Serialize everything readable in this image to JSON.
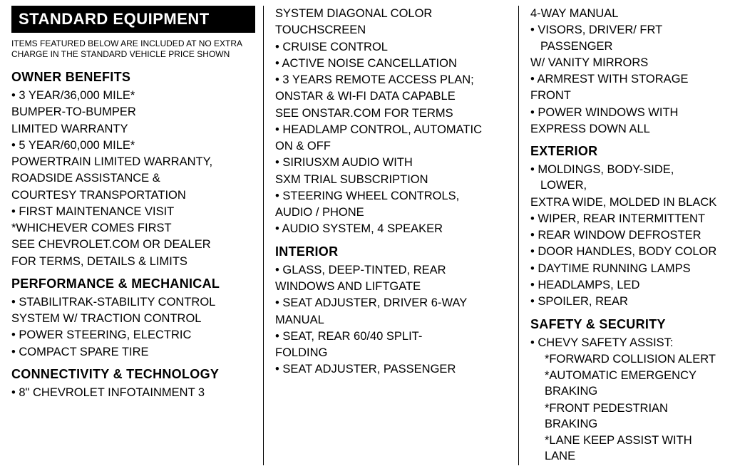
{
  "header": "STANDARD EQUIPMENT",
  "subnote": "ITEMS FEATURED BELOW ARE INCLUDED AT NO EXTRA CHARGE IN THE STANDARD VEHICLE PRICE SHOWN",
  "col1": {
    "sections": [
      {
        "title": "OWNER BENEFITS",
        "lines": [
          {
            "t": "3 YEAR/36,000 MILE*",
            "b": true
          },
          {
            "t": "BUMPER-TO-BUMPER",
            "b": false
          },
          {
            "t": "LIMITED WARRANTY",
            "b": false
          },
          {
            "t": "5 YEAR/60,000 MILE*",
            "b": true
          },
          {
            "t": "POWERTRAIN LIMITED WARRANTY,",
            "b": false
          },
          {
            "t": "ROADSIDE ASSISTANCE &",
            "b": false
          },
          {
            "t": "COURTESY TRANSPORTATION",
            "b": false
          },
          {
            "t": "FIRST MAINTENANCE VISIT",
            "b": true
          },
          {
            "t": "*WHICHEVER COMES FIRST",
            "b": false
          },
          {
            "t": "SEE CHEVROLET.COM OR DEALER",
            "b": false
          },
          {
            "t": "FOR TERMS, DETAILS & LIMITS",
            "b": false
          }
        ]
      },
      {
        "title": "PERFORMANCE & MECHANICAL",
        "lines": [
          {
            "t": "STABILITRAK-STABILITY CONTROL",
            "b": true
          },
          {
            "t": "SYSTEM W/ TRACTION CONTROL",
            "b": false
          },
          {
            "t": "POWER STEERING, ELECTRIC",
            "b": true
          },
          {
            "t": "COMPACT SPARE TIRE",
            "b": true
          }
        ]
      },
      {
        "title": "CONNECTIVITY & TECHNOLOGY",
        "lines": [
          {
            "t": "8\" CHEVROLET INFOTAINMENT 3",
            "b": true
          }
        ]
      }
    ]
  },
  "col2": {
    "sections": [
      {
        "title": null,
        "lines": [
          {
            "t": "SYSTEM DIAGONAL COLOR",
            "b": false
          },
          {
            "t": "TOUCHSCREEN",
            "b": false
          },
          {
            "t": "CRUISE CONTROL",
            "b": true
          },
          {
            "t": "ACTIVE NOISE CANCELLATION",
            "b": true
          },
          {
            "t": "3 YEARS REMOTE ACCESS PLAN;",
            "b": true
          },
          {
            "t": "ONSTAR & WI-FI DATA CAPABLE",
            "b": false
          },
          {
            "t": "SEE ONSTAR.COM FOR TERMS",
            "b": false
          },
          {
            "t": "HEADLAMP CONTROL, AUTOMATIC",
            "b": true
          },
          {
            "t": "ON & OFF",
            "b": false
          },
          {
            "t": "SIRIUSXM AUDIO WITH",
            "b": true
          },
          {
            "t": "SXM TRIAL SUBSCRIPTION",
            "b": false
          },
          {
            "t": "STEERING WHEEL CONTROLS,",
            "b": true
          },
          {
            "t": "AUDIO / PHONE",
            "b": false
          },
          {
            "t": "AUDIO SYSTEM, 4 SPEAKER",
            "b": true
          }
        ]
      },
      {
        "title": "INTERIOR",
        "lines": [
          {
            "t": "GLASS, DEEP-TINTED, REAR",
            "b": true
          },
          {
            "t": "WINDOWS AND LIFTGATE",
            "b": false
          },
          {
            "t": "SEAT ADJUSTER, DRIVER 6-WAY",
            "b": true
          },
          {
            "t": "MANUAL",
            "b": false
          },
          {
            "t": "SEAT, REAR 60/40 SPLIT-",
            "b": true
          },
          {
            "t": "FOLDING",
            "b": false
          },
          {
            "t": "SEAT ADJUSTER, PASSENGER",
            "b": true
          }
        ]
      }
    ]
  },
  "col3": {
    "sections": [
      {
        "title": null,
        "lines": [
          {
            "t": "4-WAY MANUAL",
            "b": false
          },
          {
            "t": "VISORS, DRIVER/ FRT PASSENGER",
            "b": true
          },
          {
            "t": "W/ VANITY MIRRORS",
            "b": false
          },
          {
            "t": "ARMREST WITH STORAGE",
            "b": true
          },
          {
            "t": "FRONT",
            "b": false
          },
          {
            "t": "POWER WINDOWS WITH",
            "b": true
          },
          {
            "t": "EXPRESS DOWN ALL",
            "b": false
          }
        ]
      },
      {
        "title": "EXTERIOR",
        "lines": [
          {
            "t": "MOLDINGS, BODY-SIDE, LOWER,",
            "b": true
          },
          {
            "t": "EXTRA WIDE, MOLDED IN BLACK",
            "b": false
          },
          {
            "t": "WIPER, REAR INTERMITTENT",
            "b": true
          },
          {
            "t": "REAR WINDOW DEFROSTER",
            "b": true
          },
          {
            "t": "DOOR HANDLES, BODY COLOR",
            "b": true
          },
          {
            "t": "DAYTIME RUNNING LAMPS",
            "b": true
          },
          {
            "t": "HEADLAMPS, LED",
            "b": true
          },
          {
            "t": "SPOILER, REAR",
            "b": true
          }
        ]
      },
      {
        "title": "SAFETY & SECURITY",
        "lines": [
          {
            "t": "CHEVY SAFETY ASSIST:",
            "b": true
          },
          {
            "t": "*FORWARD COLLISION ALERT",
            "b": false,
            "indent": true
          },
          {
            "t": "*AUTOMATIC EMERGENCY BRAKING",
            "b": false,
            "indent": true
          },
          {
            "t": "*FRONT PEDESTRIAN BRAKING",
            "b": false,
            "indent": true
          },
          {
            "t": "*LANE KEEP ASSIST WITH LANE",
            "b": false,
            "indent": true
          }
        ]
      }
    ]
  }
}
